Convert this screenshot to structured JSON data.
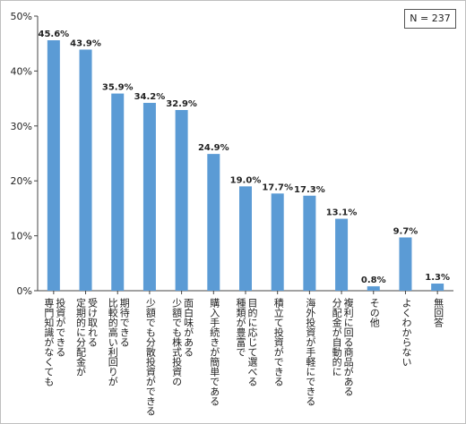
{
  "chart_data": {
    "type": "bar",
    "sample_note": "N = 237",
    "ylim": [
      0,
      50
    ],
    "yticks": [
      "0%",
      "10%",
      "20%",
      "30%",
      "40%",
      "50%"
    ],
    "bar_color": "#5b9bd5",
    "grid": false,
    "categories": [
      [
        "投資ができる",
        "専門知識がなくても"
      ],
      [
        "受け取れる",
        "定期的に分配金が"
      ],
      [
        "期待できる",
        "比較的高い利回りが"
      ],
      [
        "少額でも分散投資ができる"
      ],
      [
        "面白味がある",
        "少額でも株式投資の"
      ],
      [
        "購入手続きが簡単である"
      ],
      [
        "目的に応じて選べる",
        "種類が豊富で"
      ],
      [
        "積立て投資ができる"
      ],
      [
        "海外投資が手軽にできる"
      ],
      [
        "複利に回る商品がある",
        "分配金が自動的に"
      ],
      [
        "その他"
      ],
      [
        "よくわからない"
      ],
      [
        "無回答"
      ]
    ],
    "values": [
      45.6,
      43.9,
      35.9,
      34.2,
      32.9,
      24.9,
      19.0,
      17.7,
      17.3,
      13.1,
      0.8,
      9.7,
      1.3
    ],
    "value_labels": [
      "45.6%",
      "43.9%",
      "35.9%",
      "34.2%",
      "32.9%",
      "24.9%",
      "19.0%",
      "17.7%",
      "17.3%",
      "13.1%",
      "0.8%",
      "9.7%",
      "1.3%"
    ]
  }
}
